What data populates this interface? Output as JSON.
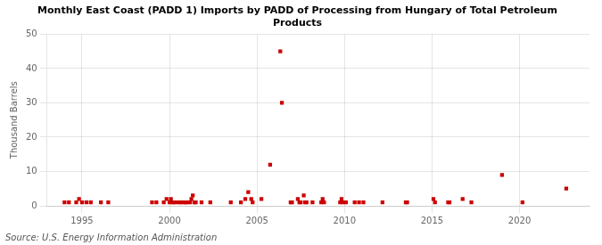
{
  "chart_data": {
    "type": "scatter",
    "title": "Monthly East Coast (PADD 1) Imports by PADD of Processing from Hungary of Total Petroleum\nProducts",
    "ylabel": "Thousand Barrels",
    "source": "Source: U.S. Energy Information Administration",
    "color": "#cc0000",
    "marker": "square",
    "grid": true,
    "xlim": [
      1993.0,
      2024.0
    ],
    "xticks": [
      1995,
      2000,
      2005,
      2010,
      2015,
      2020
    ],
    "ylim": [
      0,
      50
    ],
    "yticks": [
      0,
      10,
      20,
      30,
      40,
      50
    ],
    "x": [
      1994.0,
      1994.25,
      1994.67,
      1994.83,
      1995.0,
      1995.25,
      1995.5,
      1996.08,
      1996.5,
      1999.0,
      1999.25,
      1999.67,
      1999.83,
      2000.0,
      2000.08,
      2000.17,
      2000.25,
      2000.42,
      2000.58,
      2000.67,
      2000.83,
      2000.92,
      2001.0,
      2001.17,
      2001.25,
      2001.33,
      2001.42,
      2001.5,
      2001.83,
      2002.33,
      2003.5,
      2004.08,
      2004.33,
      2004.5,
      2004.67,
      2004.75,
      2005.25,
      2005.75,
      2006.33,
      2006.42,
      2006.92,
      2007.0,
      2007.33,
      2007.42,
      2007.5,
      2007.67,
      2007.75,
      2007.83,
      2008.17,
      2008.67,
      2008.75,
      2008.83,
      2009.75,
      2009.83,
      2009.92,
      2010.08,
      2010.58,
      2010.83,
      2011.08,
      2012.17,
      2013.5,
      2013.58,
      2015.08,
      2015.17,
      2015.92,
      2016.0,
      2016.75,
      2017.25,
      2019.0,
      2020.17,
      2022.67
    ],
    "values": [
      1,
      1,
      1,
      2,
      1,
      1,
      1,
      1,
      1,
      1,
      1,
      1,
      2,
      1,
      2,
      1,
      1,
      1,
      1,
      1,
      1,
      1,
      1,
      1,
      2,
      3,
      1,
      1,
      1,
      1,
      1,
      1,
      2,
      4,
      2,
      1,
      2,
      12,
      45,
      30,
      1,
      1,
      2,
      1,
      1,
      3,
      1,
      1,
      1,
      1,
      2,
      1,
      1,
      2,
      1,
      1,
      1,
      1,
      1,
      1,
      1,
      1,
      2,
      1,
      1,
      1,
      2,
      1,
      9,
      1,
      5
    ]
  }
}
